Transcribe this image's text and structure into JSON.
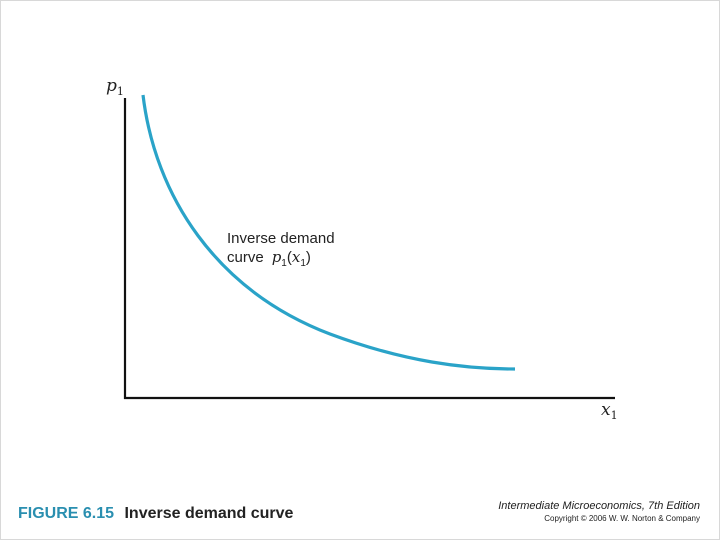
{
  "diagram": {
    "y_axis_label": {
      "var": "p",
      "sub": "1"
    },
    "x_axis_label": {
      "var": "x",
      "sub": "1"
    },
    "curve_label": {
      "line1": "Inverse demand",
      "line2_prefix": "curve",
      "fn_var": "p",
      "fn_sub": "1",
      "arg_var": "x",
      "arg_sub": "1"
    },
    "curve_color": "#2aa3c8",
    "axis_color": "#111111"
  },
  "caption": {
    "figure_number": "FIGURE 6.15",
    "figure_title": "Inverse demand curve",
    "figure_number_color": "#2a8fb0"
  },
  "credits": {
    "book_title": "Intermediate Microeconomics",
    "edition": ", 7th Edition",
    "copyright": "Copyright © 2006 W. W. Norton & Company"
  }
}
